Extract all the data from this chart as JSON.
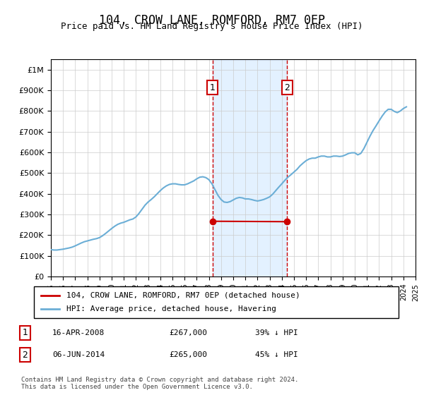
{
  "title": "104, CROW LANE, ROMFORD, RM7 0EP",
  "subtitle": "Price paid vs. HM Land Registry's House Price Index (HPI)",
  "footer": "Contains HM Land Registry data © Crown copyright and database right 2024.\nThis data is licensed under the Open Government Licence v3.0.",
  "legend_line1": "104, CROW LANE, ROMFORD, RM7 0EP (detached house)",
  "legend_line2": "HPI: Average price, detached house, Havering",
  "annotation1_label": "1",
  "annotation1_date": "16-APR-2008",
  "annotation1_price": "£267,000",
  "annotation1_hpi": "39% ↓ HPI",
  "annotation2_label": "2",
  "annotation2_date": "06-JUN-2014",
  "annotation2_price": "£265,000",
  "annotation2_hpi": "45% ↓ HPI",
  "hpi_color": "#6baed6",
  "price_color": "#cc0000",
  "annotation_color": "#cc0000",
  "shading_color": "#ddeeff",
  "ylim": [
    0,
    1050000
  ],
  "yticks": [
    0,
    100000,
    200000,
    300000,
    400000,
    500000,
    600000,
    700000,
    800000,
    900000,
    1000000
  ],
  "hpi_data": {
    "years": [
      1995.0,
      1995.25,
      1995.5,
      1995.75,
      1996.0,
      1996.25,
      1996.5,
      1996.75,
      1997.0,
      1997.25,
      1997.5,
      1997.75,
      1998.0,
      1998.25,
      1998.5,
      1998.75,
      1999.0,
      1999.25,
      1999.5,
      1999.75,
      2000.0,
      2000.25,
      2000.5,
      2000.75,
      2001.0,
      2001.25,
      2001.5,
      2001.75,
      2002.0,
      2002.25,
      2002.5,
      2002.75,
      2003.0,
      2003.25,
      2003.5,
      2003.75,
      2004.0,
      2004.25,
      2004.5,
      2004.75,
      2005.0,
      2005.25,
      2005.5,
      2005.75,
      2006.0,
      2006.25,
      2006.5,
      2006.75,
      2007.0,
      2007.25,
      2007.5,
      2007.75,
      2008.0,
      2008.25,
      2008.5,
      2008.75,
      2009.0,
      2009.25,
      2009.5,
      2009.75,
      2010.0,
      2010.25,
      2010.5,
      2010.75,
      2011.0,
      2011.25,
      2011.5,
      2011.75,
      2012.0,
      2012.25,
      2012.5,
      2012.75,
      2013.0,
      2013.25,
      2013.5,
      2013.75,
      2014.0,
      2014.25,
      2014.5,
      2014.75,
      2015.0,
      2015.25,
      2015.5,
      2015.75,
      2016.0,
      2016.25,
      2016.5,
      2016.75,
      2017.0,
      2017.25,
      2017.5,
      2017.75,
      2018.0,
      2018.25,
      2018.5,
      2018.75,
      2019.0,
      2019.25,
      2019.5,
      2019.75,
      2020.0,
      2020.25,
      2020.5,
      2020.75,
      2021.0,
      2021.25,
      2021.5,
      2021.75,
      2022.0,
      2022.25,
      2022.5,
      2022.75,
      2023.0,
      2023.25,
      2023.5,
      2023.75,
      2024.0,
      2024.25
    ],
    "values": [
      130000,
      128000,
      128000,
      130000,
      132000,
      135000,
      138000,
      142000,
      148000,
      155000,
      162000,
      168000,
      172000,
      176000,
      180000,
      183000,
      188000,
      197000,
      208000,
      220000,
      232000,
      243000,
      252000,
      258000,
      262000,
      268000,
      274000,
      278000,
      288000,
      305000,
      325000,
      345000,
      360000,
      372000,
      385000,
      400000,
      415000,
      428000,
      438000,
      445000,
      448000,
      448000,
      445000,
      443000,
      443000,
      448000,
      455000,
      462000,
      472000,
      480000,
      482000,
      478000,
      468000,
      448000,
      420000,
      392000,
      372000,
      360000,
      358000,
      362000,
      370000,
      378000,
      382000,
      380000,
      375000,
      375000,
      372000,
      368000,
      365000,
      368000,
      372000,
      378000,
      385000,
      398000,
      415000,
      432000,
      448000,
      465000,
      480000,
      492000,
      505000,
      518000,
      535000,
      548000,
      560000,
      568000,
      572000,
      572000,
      578000,
      582000,
      582000,
      578000,
      578000,
      582000,
      582000,
      580000,
      582000,
      588000,
      595000,
      598000,
      598000,
      588000,
      595000,
      618000,
      648000,
      678000,
      705000,
      728000,
      752000,
      775000,
      795000,
      808000,
      808000,
      798000,
      792000,
      800000,
      812000,
      820000
    ]
  },
  "price_data": {
    "years": [
      2008.29,
      2014.43
    ],
    "values": [
      267000,
      265000
    ]
  },
  "annotation1_year": 2008.29,
  "annotation2_year": 2014.43,
  "xmin": 1995,
  "xmax": 2025
}
